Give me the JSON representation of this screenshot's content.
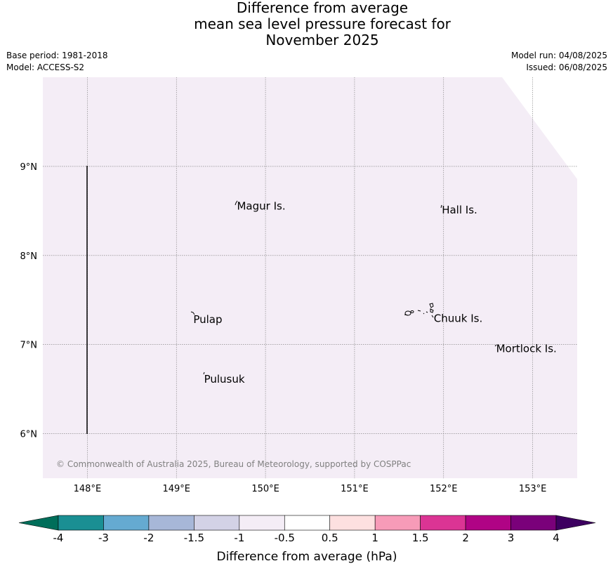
{
  "title": {
    "line1": "Difference from average",
    "line2": "mean sea level pressure forecast for",
    "line3": "November 2025"
  },
  "meta_left": {
    "base_period": "Base period: 1981-2018",
    "model": "Model: ACCESS-S2"
  },
  "meta_right": {
    "model_run": "Model run: 04/08/2025",
    "issued": "Issued: 06/08/2025"
  },
  "map": {
    "fill_color": "#f4edf6",
    "lon_range": [
      147.5,
      153.5
    ],
    "lat_range": [
      5.5,
      10.0
    ],
    "lon_ticks": [
      {
        "value": 148,
        "label": "148°E"
      },
      {
        "value": 149,
        "label": "149°E"
      },
      {
        "value": 150,
        "label": "150°E"
      },
      {
        "value": 151,
        "label": "151°E"
      },
      {
        "value": 152,
        "label": "152°E"
      },
      {
        "value": 153,
        "label": "153°E"
      }
    ],
    "lat_ticks": [
      {
        "value": 9,
        "label": "9°N"
      },
      {
        "value": 8,
        "label": "8°N"
      },
      {
        "value": 7,
        "label": "7°N"
      },
      {
        "value": 6,
        "label": "6°N"
      }
    ],
    "gridlines": true,
    "places": [
      {
        "name": "Magur Is.",
        "lon": 149.68,
        "lat": 8.56
      },
      {
        "name": "Hall Is.",
        "lon": 151.98,
        "lat": 8.52
      },
      {
        "name": "Pulap",
        "lon": 149.19,
        "lat": 7.29
      },
      {
        "name": "Chuuk Is.",
        "lon": 151.89,
        "lat": 7.3
      },
      {
        "name": "Mortlock Is.",
        "lon": 152.59,
        "lat": 6.96
      },
      {
        "name": "Pulusuk",
        "lon": 149.31,
        "lat": 6.62
      }
    ],
    "copyright": "© Commonwealth of Australia 2025, Bureau of Meteorology, supported by COSPPac"
  },
  "colorbar": {
    "title": "Difference from average (hPa)",
    "labels": [
      "-4",
      "-3",
      "-2",
      "-1.5",
      "-1",
      "-0.5",
      "0.5",
      "1",
      "1.5",
      "2",
      "3",
      "4"
    ],
    "under_color": "#006e5a",
    "over_color": "#3d0060",
    "colors": [
      "#1a8f93",
      "#65aad1",
      "#a7b7d8",
      "#d3d2e6",
      "#f4edf6",
      "#ffffff",
      "#fde0e0",
      "#f79bb8",
      "#db3494",
      "#b00385",
      "#7a017a"
    ]
  }
}
